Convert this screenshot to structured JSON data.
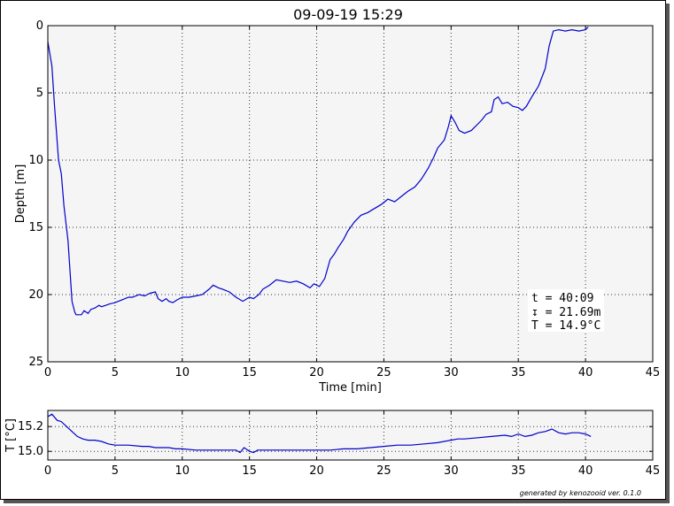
{
  "title": "09-09-19 15:29",
  "footer": "generated by kenozooid ver. 0.1.0",
  "annotation": [
    "t = 40:09",
    "↧ = 21.69m",
    "T = 14.9°C"
  ],
  "colors": {
    "line": "#0000cc",
    "plot_bg": "#f5f5f5",
    "frame": "#000000"
  },
  "chart_data": [
    {
      "type": "line",
      "name": "depth-profile",
      "xlabel": "Time [min]",
      "ylabel": "Depth [m]",
      "xlim": [
        0,
        45
      ],
      "ylim": [
        25,
        0
      ],
      "y_inverted": true,
      "xticks": [
        0,
        5,
        10,
        15,
        20,
        25,
        30,
        35,
        40,
        45
      ],
      "yticks": [
        0,
        5,
        10,
        15,
        20,
        25
      ],
      "grid": true,
      "series": [
        {
          "x": [
            0,
            0.3,
            0.5,
            0.8,
            1.0,
            1.2,
            1.5,
            1.7,
            1.8,
            2.0,
            2.1,
            2.3,
            2.5,
            2.7,
            3.0,
            3.2,
            3.5,
            3.8,
            4.0,
            4.3,
            4.6,
            5.0,
            5.5,
            6.0,
            6.3,
            6.8,
            7.2,
            7.6,
            8.0,
            8.2,
            8.5,
            8.8,
            9.0,
            9.3,
            9.6,
            10.0,
            10.5,
            11.0,
            11.5,
            12.0,
            12.3,
            12.7,
            13.0,
            13.5,
            14.0,
            14.5,
            15.0,
            15.3,
            15.7,
            16.0,
            16.5,
            17.0,
            17.5,
            18.0,
            18.5,
            19.0,
            19.5,
            19.8,
            20.2,
            20.6,
            21.0,
            21.3,
            21.6,
            22.0,
            22.3,
            22.8,
            23.3,
            23.8,
            24.3,
            24.8,
            25.3,
            25.8,
            26.3,
            26.8,
            27.3,
            27.8,
            28.3,
            28.7,
            29.0,
            29.5,
            29.8,
            30.0,
            30.3,
            30.6,
            31.0,
            31.5,
            32.0,
            32.3,
            32.6,
            33.0,
            33.2,
            33.5,
            33.8,
            34.2,
            34.6,
            35.0,
            35.3,
            35.6,
            36.0,
            36.5,
            37.0,
            37.3,
            37.6,
            38.0,
            38.5,
            39.0,
            39.5,
            40.0,
            40.2
          ],
          "y": [
            1.2,
            3.0,
            6.0,
            10.0,
            11.0,
            13.4,
            16.0,
            19.0,
            20.5,
            21.3,
            21.5,
            21.5,
            21.5,
            21.2,
            21.4,
            21.1,
            21.0,
            20.8,
            20.9,
            20.8,
            20.7,
            20.6,
            20.4,
            20.2,
            20.2,
            20.0,
            20.1,
            19.9,
            19.8,
            20.3,
            20.5,
            20.3,
            20.5,
            20.6,
            20.4,
            20.2,
            20.2,
            20.1,
            20.0,
            19.6,
            19.3,
            19.5,
            19.6,
            19.8,
            20.2,
            20.5,
            20.2,
            20.3,
            20.0,
            19.6,
            19.3,
            18.9,
            19.0,
            19.1,
            19.0,
            19.2,
            19.5,
            19.2,
            19.4,
            18.8,
            17.4,
            17.0,
            16.5,
            15.9,
            15.3,
            14.6,
            14.1,
            13.9,
            13.6,
            13.3,
            12.9,
            13.1,
            12.7,
            12.3,
            12.0,
            11.4,
            10.6,
            9.8,
            9.1,
            8.5,
            7.5,
            6.7,
            7.2,
            7.8,
            8.0,
            7.8,
            7.3,
            7.0,
            6.6,
            6.4,
            5.5,
            5.3,
            5.8,
            5.7,
            6.0,
            6.1,
            6.3,
            6.0,
            5.3,
            4.5,
            3.2,
            1.5,
            0.4,
            0.3,
            0.4,
            0.3,
            0.4,
            0.3,
            0.1
          ]
        }
      ]
    },
    {
      "type": "line",
      "name": "temperature-profile",
      "xlabel": "",
      "ylabel": "T [°C]",
      "xlim": [
        0,
        45
      ],
      "ylim": [
        14.93,
        15.33
      ],
      "xticks": [
        0,
        5,
        10,
        15,
        20,
        25,
        30,
        35,
        40,
        45
      ],
      "yticks": [
        15.0,
        15.2
      ],
      "ytick_labels": [
        "15.0",
        "15.2"
      ],
      "grid": true,
      "series": [
        {
          "x": [
            0,
            0.3,
            0.7,
            1.0,
            1.4,
            1.8,
            2.2,
            2.6,
            3.0,
            3.5,
            4.0,
            4.5,
            5.0,
            6.0,
            7.0,
            7.5,
            8.0,
            9.0,
            9.5,
            10.0,
            11.0,
            12.0,
            13.0,
            14.0,
            14.3,
            14.6,
            15.0,
            15.3,
            15.6,
            16.0,
            17.0,
            18.0,
            19.0,
            20.0,
            21.0,
            22.0,
            23.0,
            24.0,
            25.0,
            26.0,
            27.0,
            28.0,
            29.0,
            30.0,
            30.5,
            31.0,
            32.0,
            33.0,
            34.0,
            34.5,
            35.0,
            35.5,
            36.0,
            36.5,
            37.0,
            37.5,
            38.0,
            38.5,
            39.0,
            39.5,
            40.0,
            40.4
          ],
          "y": [
            15.28,
            15.3,
            15.25,
            15.24,
            15.2,
            15.16,
            15.12,
            15.1,
            15.09,
            15.09,
            15.08,
            15.06,
            15.05,
            15.05,
            15.04,
            15.04,
            15.03,
            15.03,
            15.02,
            15.02,
            15.01,
            15.01,
            15.01,
            15.01,
            14.99,
            15.03,
            15.0,
            14.99,
            15.01,
            15.01,
            15.01,
            15.01,
            15.01,
            15.01,
            15.01,
            15.02,
            15.02,
            15.03,
            15.04,
            15.05,
            15.05,
            15.06,
            15.07,
            15.09,
            15.1,
            15.1,
            15.11,
            15.12,
            15.13,
            15.12,
            15.14,
            15.12,
            15.13,
            15.15,
            15.16,
            15.18,
            15.15,
            15.14,
            15.15,
            15.15,
            15.14,
            15.12
          ]
        }
      ]
    }
  ]
}
